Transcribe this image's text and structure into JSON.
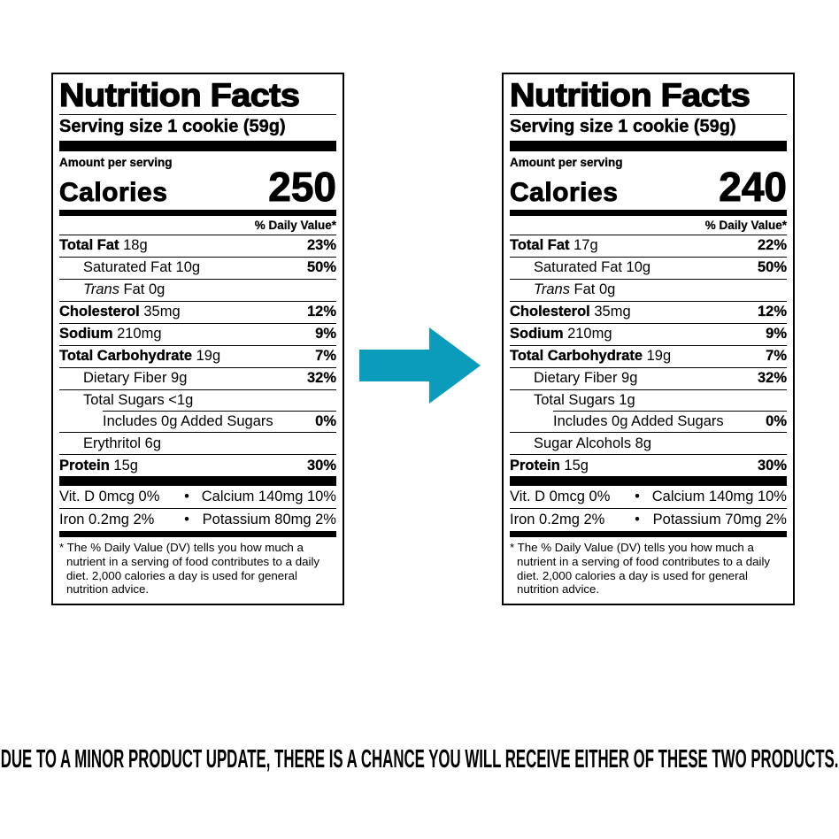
{
  "page": {
    "background": "#ffffff",
    "caption": "DUE TO A MINOR PRODUCT UPDATE, THERE IS A CHANCE YOU WILL RECEIVE EITHER OF THESE TWO PRODUCTS."
  },
  "arrow": {
    "name": "right-arrow",
    "color": "#0a9cba",
    "direction": "right"
  },
  "labels": [
    {
      "id": "original-product",
      "title": "Nutrition Facts",
      "serving_size": "Serving size 1 cookie (59g)",
      "amount_per_serving": "Amount per serving",
      "calories_label": "Calories",
      "calories_value": "250",
      "daily_value_header": "% Daily Value*",
      "rows": [
        {
          "parts": [
            {
              "t": "Total Fat",
              "b": true
            },
            {
              "t": " 18g"
            }
          ],
          "pct": "23%",
          "indent": 0
        },
        {
          "parts": [
            {
              "t": "Saturated Fat 10g"
            }
          ],
          "pct": "50%",
          "indent": 1
        },
        {
          "parts": [
            {
              "t": "Trans",
              "i": true
            },
            {
              "t": " Fat 0g"
            }
          ],
          "pct": "",
          "indent": 1
        },
        {
          "parts": [
            {
              "t": "Cholesterol",
              "b": true
            },
            {
              "t": " 35mg"
            }
          ],
          "pct": "12%",
          "indent": 0
        },
        {
          "parts": [
            {
              "t": "Sodium",
              "b": true
            },
            {
              "t": " 210mg"
            }
          ],
          "pct": "9%",
          "indent": 0
        },
        {
          "parts": [
            {
              "t": "Total Carbohydrate",
              "b": true
            },
            {
              "t": " 19g"
            }
          ],
          "pct": "7%",
          "indent": 0
        },
        {
          "parts": [
            {
              "t": "Dietary Fiber 9g"
            }
          ],
          "pct": "32%",
          "indent": 1
        },
        {
          "parts": [
            {
              "t": "Total Sugars <1g"
            }
          ],
          "pct": "",
          "indent": 1
        },
        {
          "parts": [
            {
              "t": "Includes 0g Added Sugars"
            }
          ],
          "pct": "0%",
          "indent": 2,
          "indent_line": true
        },
        {
          "parts": [
            {
              "t": "Erythritol 6g"
            }
          ],
          "pct": "",
          "indent": 1
        },
        {
          "parts": [
            {
              "t": "Protein",
              "b": true
            },
            {
              "t": " 15g"
            }
          ],
          "pct": "30%",
          "indent": 0
        }
      ],
      "micronutrients": [
        {
          "left": "Vit. D 0mcg 0%",
          "sep": "•",
          "right": "Calcium 140mg 10%"
        },
        {
          "left": "Iron 0.2mg 2%",
          "sep": "•",
          "right": "Potassium 80mg 2%"
        }
      ],
      "footnote": "* The % Daily Value (DV) tells you how much a nutrient in a serving of food contributes to a daily diet. 2,000 calories a day is used for general nutrition advice."
    },
    {
      "id": "updated-product",
      "title": "Nutrition Facts",
      "serving_size": "Serving size 1 cookie (59g)",
      "amount_per_serving": "Amount per serving",
      "calories_label": "Calories",
      "calories_value": "240",
      "daily_value_header": "% Daily Value*",
      "rows": [
        {
          "parts": [
            {
              "t": "Total Fat",
              "b": true
            },
            {
              "t": " 17g"
            }
          ],
          "pct": "22%",
          "indent": 0
        },
        {
          "parts": [
            {
              "t": "Saturated Fat 10g"
            }
          ],
          "pct": "50%",
          "indent": 1
        },
        {
          "parts": [
            {
              "t": "Trans",
              "i": true
            },
            {
              "t": " Fat 0g"
            }
          ],
          "pct": "",
          "indent": 1
        },
        {
          "parts": [
            {
              "t": "Cholesterol",
              "b": true
            },
            {
              "t": " 35mg"
            }
          ],
          "pct": "12%",
          "indent": 0
        },
        {
          "parts": [
            {
              "t": "Sodium",
              "b": true
            },
            {
              "t": " 210mg"
            }
          ],
          "pct": "9%",
          "indent": 0
        },
        {
          "parts": [
            {
              "t": "Total Carbohydrate",
              "b": true
            },
            {
              "t": " 19g"
            }
          ],
          "pct": "7%",
          "indent": 0
        },
        {
          "parts": [
            {
              "t": "Dietary Fiber 9g"
            }
          ],
          "pct": "32%",
          "indent": 1
        },
        {
          "parts": [
            {
              "t": "Total Sugars 1g"
            }
          ],
          "pct": "",
          "indent": 1
        },
        {
          "parts": [
            {
              "t": "Includes 0g Added Sugars"
            }
          ],
          "pct": "0%",
          "indent": 2,
          "indent_line": true
        },
        {
          "parts": [
            {
              "t": "Sugar Alcohols 8g"
            }
          ],
          "pct": "",
          "indent": 1
        },
        {
          "parts": [
            {
              "t": "Protein",
              "b": true
            },
            {
              "t": " 15g"
            }
          ],
          "pct": "30%",
          "indent": 0
        }
      ],
      "micronutrients": [
        {
          "left": "Vit. D 0mcg 0%",
          "sep": "•",
          "right": "Calcium 140mg 10%"
        },
        {
          "left": "Iron 0.2mg 2%",
          "sep": "•",
          "right": "Potassium 70mg 2%"
        }
      ],
      "footnote": "* The % Daily Value (DV) tells you how much a nutrient in a serving of food contributes to a daily diet. 2,000 calories a day is used for general nutrition advice."
    }
  ]
}
